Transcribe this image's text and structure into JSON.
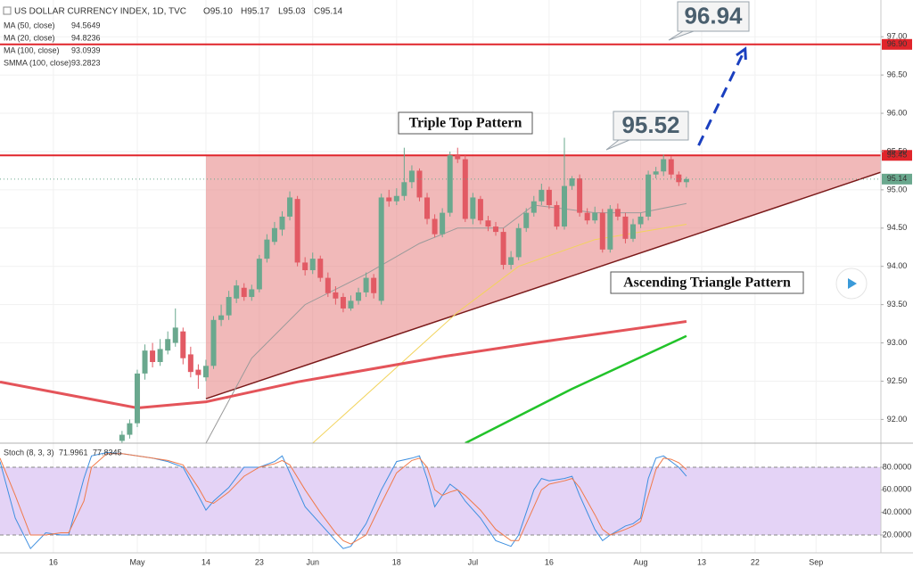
{
  "chart_data": [
    {
      "type": "candlestick",
      "title": "US DOLLAR CURRENCY INDEX, 1D, TVC",
      "ohlc_labels": [
        "O95.10",
        "H95.17",
        "L95.03",
        "C95.14"
      ],
      "xlim": [
        0,
        115.5
      ],
      "ylim": [
        91.69,
        97.48
      ],
      "yticks": [
        {
          "value": 92,
          "label": "92.00"
        },
        {
          "value": 92.5,
          "label": "92.50"
        },
        {
          "value": 93,
          "label": "93.00"
        },
        {
          "value": 93.5,
          "label": "93.50"
        },
        {
          "value": 94,
          "label": "94.00"
        },
        {
          "value": 94.5,
          "label": "94.50"
        },
        {
          "value": 95,
          "label": "95.00"
        },
        {
          "value": 95.5,
          "label": "95.50"
        },
        {
          "value": 96,
          "label": "96.00"
        },
        {
          "value": 96.5,
          "label": "96.50"
        },
        {
          "value": 97,
          "label": "97.00"
        }
      ],
      "grid": true,
      "up_color": "#6aa88e",
      "down_color": "#e25a64",
      "candles": {
        "x": [
          16,
          17,
          18,
          19,
          20,
          21,
          22,
          23,
          24,
          25,
          26,
          27,
          28,
          29,
          30,
          31,
          32,
          33,
          34,
          35,
          36,
          37,
          38,
          39,
          40,
          41,
          42,
          43,
          44,
          45,
          46,
          47,
          48,
          49,
          50,
          51,
          52,
          53,
          54,
          55,
          56,
          57,
          58,
          59,
          60,
          61,
          62,
          63,
          64,
          65,
          66,
          67,
          68,
          69,
          70,
          71,
          72,
          73,
          74,
          75,
          76,
          77,
          78,
          79,
          80,
          81,
          82,
          83,
          84,
          85,
          86,
          87,
          88,
          89,
          90
        ],
        "open": [
          91.72,
          91.8,
          91.95,
          92.6,
          92.9,
          92.75,
          92.9,
          93.0,
          93.15,
          92.85,
          92.65,
          92.55,
          92.7,
          93.3,
          93.36,
          93.58,
          93.72,
          93.6,
          93.7,
          94.1,
          94.32,
          94.48,
          94.65,
          94.88,
          94.05,
          93.95,
          94.1,
          93.85,
          93.66,
          93.6,
          93.45,
          93.55,
          93.66,
          93.85,
          93.55,
          94.9,
          94.85,
          94.92,
          95.1,
          95.25,
          94.9,
          94.62,
          94.42,
          94.7,
          95.45,
          95.4,
          94.62,
          94.88,
          94.6,
          94.52,
          94.45,
          94.02,
          94.12,
          94.5,
          94.7,
          94.85,
          95.0,
          94.8,
          94.52,
          95.05,
          95.15,
          94.7,
          94.6,
          94.7,
          94.22,
          94.75,
          94.65,
          94.36,
          94.55,
          94.65,
          95.2,
          95.24,
          95.4,
          95.2,
          95.1
        ],
        "high": [
          91.85,
          92.0,
          92.65,
          92.98,
          93.0,
          93.05,
          93.15,
          93.45,
          93.2,
          92.95,
          92.72,
          92.78,
          93.35,
          93.5,
          93.68,
          93.82,
          93.78,
          93.76,
          94.15,
          94.42,
          94.58,
          94.72,
          94.98,
          94.92,
          94.12,
          94.18,
          94.14,
          93.92,
          93.74,
          93.65,
          93.62,
          93.72,
          93.92,
          93.9,
          94.95,
          95.0,
          95.02,
          95.55,
          95.32,
          95.28,
          94.96,
          94.68,
          94.76,
          95.5,
          95.55,
          95.45,
          94.96,
          94.92,
          94.66,
          94.58,
          94.5,
          94.2,
          94.56,
          94.76,
          94.92,
          95.08,
          95.04,
          94.85,
          95.68,
          95.18,
          95.2,
          94.76,
          94.78,
          94.75,
          94.8,
          94.82,
          94.7,
          94.62,
          94.7,
          95.25,
          95.3,
          95.46,
          95.44,
          95.24,
          95.17
        ],
        "low": [
          91.69,
          91.75,
          91.9,
          92.52,
          92.68,
          92.7,
          92.85,
          92.95,
          92.72,
          92.55,
          92.4,
          92.5,
          92.66,
          93.22,
          93.3,
          93.52,
          93.55,
          93.55,
          93.66,
          94.05,
          94.28,
          94.4,
          94.6,
          94.0,
          93.88,
          93.9,
          93.8,
          93.6,
          93.5,
          93.4,
          93.42,
          93.5,
          93.6,
          93.58,
          93.5,
          94.78,
          94.8,
          94.86,
          95.02,
          94.85,
          94.55,
          94.38,
          94.38,
          94.65,
          95.35,
          94.58,
          94.55,
          94.55,
          94.46,
          94.4,
          93.96,
          93.96,
          94.08,
          94.45,
          94.65,
          94.8,
          94.75,
          94.48,
          94.48,
          95.0,
          94.65,
          94.55,
          94.56,
          94.18,
          94.18,
          94.6,
          94.3,
          94.32,
          94.5,
          94.6,
          95.15,
          95.18,
          95.15,
          95.05,
          95.03
        ],
        "close": [
          91.8,
          91.95,
          92.6,
          92.9,
          92.75,
          92.92,
          93.05,
          93.2,
          92.8,
          92.62,
          92.58,
          92.7,
          93.3,
          93.36,
          93.6,
          93.75,
          93.6,
          93.7,
          94.1,
          94.35,
          94.5,
          94.65,
          94.9,
          94.05,
          93.95,
          94.1,
          93.85,
          93.65,
          93.58,
          93.45,
          93.55,
          93.66,
          93.85,
          93.65,
          94.9,
          94.85,
          94.92,
          95.1,
          95.25,
          94.9,
          94.62,
          94.42,
          94.7,
          95.45,
          95.4,
          94.62,
          94.9,
          94.6,
          94.52,
          94.45,
          94.02,
          94.12,
          94.5,
          94.7,
          94.85,
          95.0,
          94.8,
          94.52,
          95.05,
          95.15,
          94.7,
          94.6,
          94.7,
          94.22,
          94.75,
          94.65,
          94.36,
          94.55,
          94.65,
          95.2,
          95.24,
          95.4,
          95.2,
          95.1,
          95.14
        ]
      },
      "series": [
        {
          "name": "MA (50, close)",
          "reading": "94.5649",
          "color": "#f2d35a",
          "x": [
            41,
            50,
            60,
            68,
            78,
            90
          ],
          "values": [
            91.69,
            92.5,
            93.4,
            94.0,
            94.35,
            94.55
          ]
        },
        {
          "name": "MA (20, close)",
          "reading": "94.8236",
          "color": "#9a9a9a",
          "x": [
            27,
            33,
            40,
            48,
            55,
            60,
            66,
            70,
            78,
            84,
            90
          ],
          "values": [
            91.69,
            92.8,
            93.5,
            93.9,
            94.3,
            94.5,
            94.5,
            94.8,
            94.7,
            94.7,
            94.82
          ]
        },
        {
          "name": "MA (100, close)",
          "reading": "93.0939",
          "color": "#22c32a",
          "x": [
            61,
            75,
            90
          ],
          "values": [
            91.69,
            92.4,
            93.09
          ]
        },
        {
          "name": "SMMA (100, close)",
          "reading": "93.2823",
          "color": "#e4545a",
          "x": [
            0,
            18,
            27,
            39,
            58,
            70,
            90
          ],
          "values": [
            92.49,
            92.15,
            92.23,
            92.49,
            92.82,
            93.0,
            93.28
          ]
        }
      ],
      "levels": [
        {
          "value": 96.9,
          "label": "96.90"
        },
        {
          "value": 95.45,
          "label": "95.45"
        }
      ],
      "level_color": "#e0252b",
      "price_tag": {
        "value": 95.14,
        "label": "95.14"
      },
      "triangle": {
        "x": [
          27,
          115.5,
          115.5,
          27
        ],
        "y": [
          95.45,
          95.45,
          95.23,
          92.27
        ],
        "color": "#e88a8a"
      },
      "arrow": {
        "x": [
          91.6,
          97.7
        ],
        "y": [
          95.58,
          96.84
        ],
        "color": "#1a3fbf"
      },
      "callouts": [
        {
          "value": 96.94,
          "label": "96.94"
        },
        {
          "value": 95.52,
          "label": "95.52"
        }
      ],
      "annotations": [
        "Triple Top Pattern",
        "Ascending Triangle Pattern"
      ]
    },
    {
      "type": "line",
      "title": "Stoch (8, 3, 3)",
      "xlim": [
        0,
        115.5
      ],
      "ylim": [
        4.2,
        101.3
      ],
      "yticks": [
        {
          "value": 20,
          "label": "20.0000"
        },
        {
          "value": 40,
          "label": "40.0000"
        },
        {
          "value": 60,
          "label": "60.0000"
        },
        {
          "value": 80,
          "label": "80.0000"
        }
      ],
      "band": [
        20,
        80
      ],
      "band_color": "#e4d3f6",
      "xticks": [
        {
          "value": 7,
          "label": "16"
        },
        {
          "value": 18,
          "label": "May"
        },
        {
          "value": 27,
          "label": "14"
        },
        {
          "value": 34,
          "label": "23"
        },
        {
          "value": 41,
          "label": "Jun"
        },
        {
          "value": 52,
          "label": "18"
        },
        {
          "value": 62,
          "label": "Jul"
        },
        {
          "value": 72,
          "label": "16"
        },
        {
          "value": 84,
          "label": "Aug"
        },
        {
          "value": 92,
          "label": "13"
        },
        {
          "value": 99,
          "label": "22"
        },
        {
          "value": 107,
          "label": "Sep"
        }
      ],
      "x": [
        0,
        2,
        4,
        6,
        8,
        9,
        11,
        12,
        14,
        16,
        18,
        20,
        22,
        24,
        26,
        27,
        28,
        30,
        32,
        34,
        36,
        37,
        38,
        40,
        42,
        44,
        45,
        46,
        48,
        50,
        52,
        54,
        55,
        56,
        57,
        58,
        59,
        60,
        61,
        63,
        65,
        67,
        68,
        70,
        71,
        72,
        74,
        75,
        76,
        78,
        79,
        80,
        82,
        83,
        84,
        85,
        86,
        87,
        88,
        89,
        90
      ],
      "series": [
        {
          "reading": "71.9961",
          "color": "#3d8fe0",
          "values": [
            85,
            35,
            8,
            22,
            20,
            20,
            70,
            90,
            93,
            92,
            90,
            88,
            85,
            80,
            55,
            42,
            50,
            62,
            80,
            80,
            85,
            90,
            75,
            45,
            30,
            15,
            8,
            10,
            30,
            60,
            85,
            88,
            90,
            70,
            45,
            55,
            65,
            60,
            50,
            35,
            15,
            10,
            20,
            60,
            70,
            68,
            70,
            72,
            55,
            25,
            15,
            20,
            28,
            30,
            35,
            70,
            88,
            90,
            85,
            80,
            72
          ]
        },
        {
          "reading": "77.8345",
          "color": "#f07a4a",
          "values": [
            88,
            55,
            20,
            20,
            22,
            22,
            50,
            80,
            92,
            92,
            90,
            88,
            86,
            82,
            62,
            50,
            48,
            58,
            72,
            80,
            83,
            86,
            82,
            60,
            40,
            22,
            15,
            12,
            20,
            48,
            75,
            86,
            88,
            80,
            60,
            55,
            58,
            60,
            55,
            42,
            25,
            15,
            15,
            45,
            60,
            65,
            68,
            70,
            62,
            38,
            25,
            20,
            25,
            28,
            32,
            55,
            78,
            88,
            87,
            84,
            78
          ]
        }
      ]
    }
  ]
}
